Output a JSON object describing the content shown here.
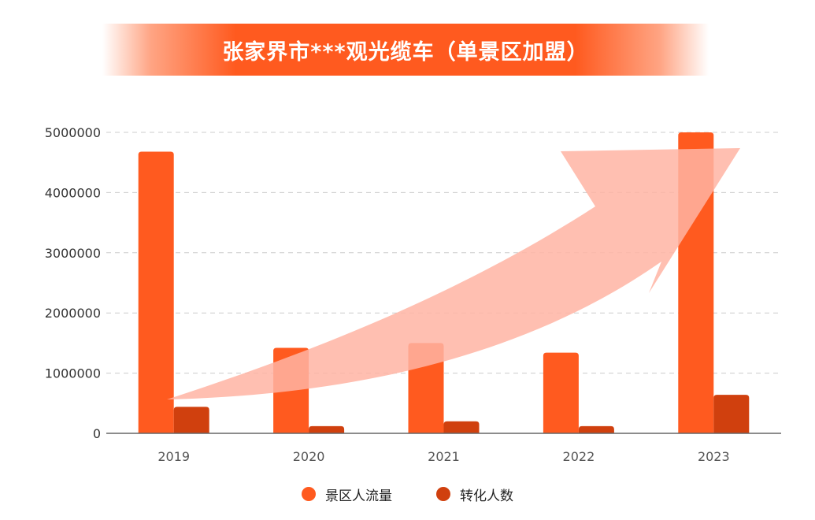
{
  "title": "张家界市***观光缆车（单景区加盟）",
  "colors": {
    "banner": "#ff5a1f",
    "series1": "#ff5a1f",
    "series2": "#d0400e",
    "arrow": "#ffb4a3",
    "grid": "#cccccc",
    "axis": "#666666"
  },
  "chart_data": {
    "type": "bar",
    "title": "张家界市***观光缆车（单景区加盟）",
    "xlabel": "",
    "ylabel": "",
    "categories": [
      "2019",
      "2020",
      "2021",
      "2022",
      "2023"
    ],
    "series": [
      {
        "name": "景区人流量",
        "values": [
          4680000,
          1420000,
          1500000,
          1340000,
          5000000
        ]
      },
      {
        "name": "转化人数",
        "values": [
          440000,
          120000,
          200000,
          120000,
          640000
        ]
      }
    ],
    "ylim": [
      0,
      5000000
    ],
    "yticks": [
      "0",
      "1000000",
      "2000000",
      "3000000",
      "4000000",
      "5000000"
    ],
    "grid": true,
    "legend_position": "bottom-center",
    "annotation": "upward-trend-arrow"
  }
}
